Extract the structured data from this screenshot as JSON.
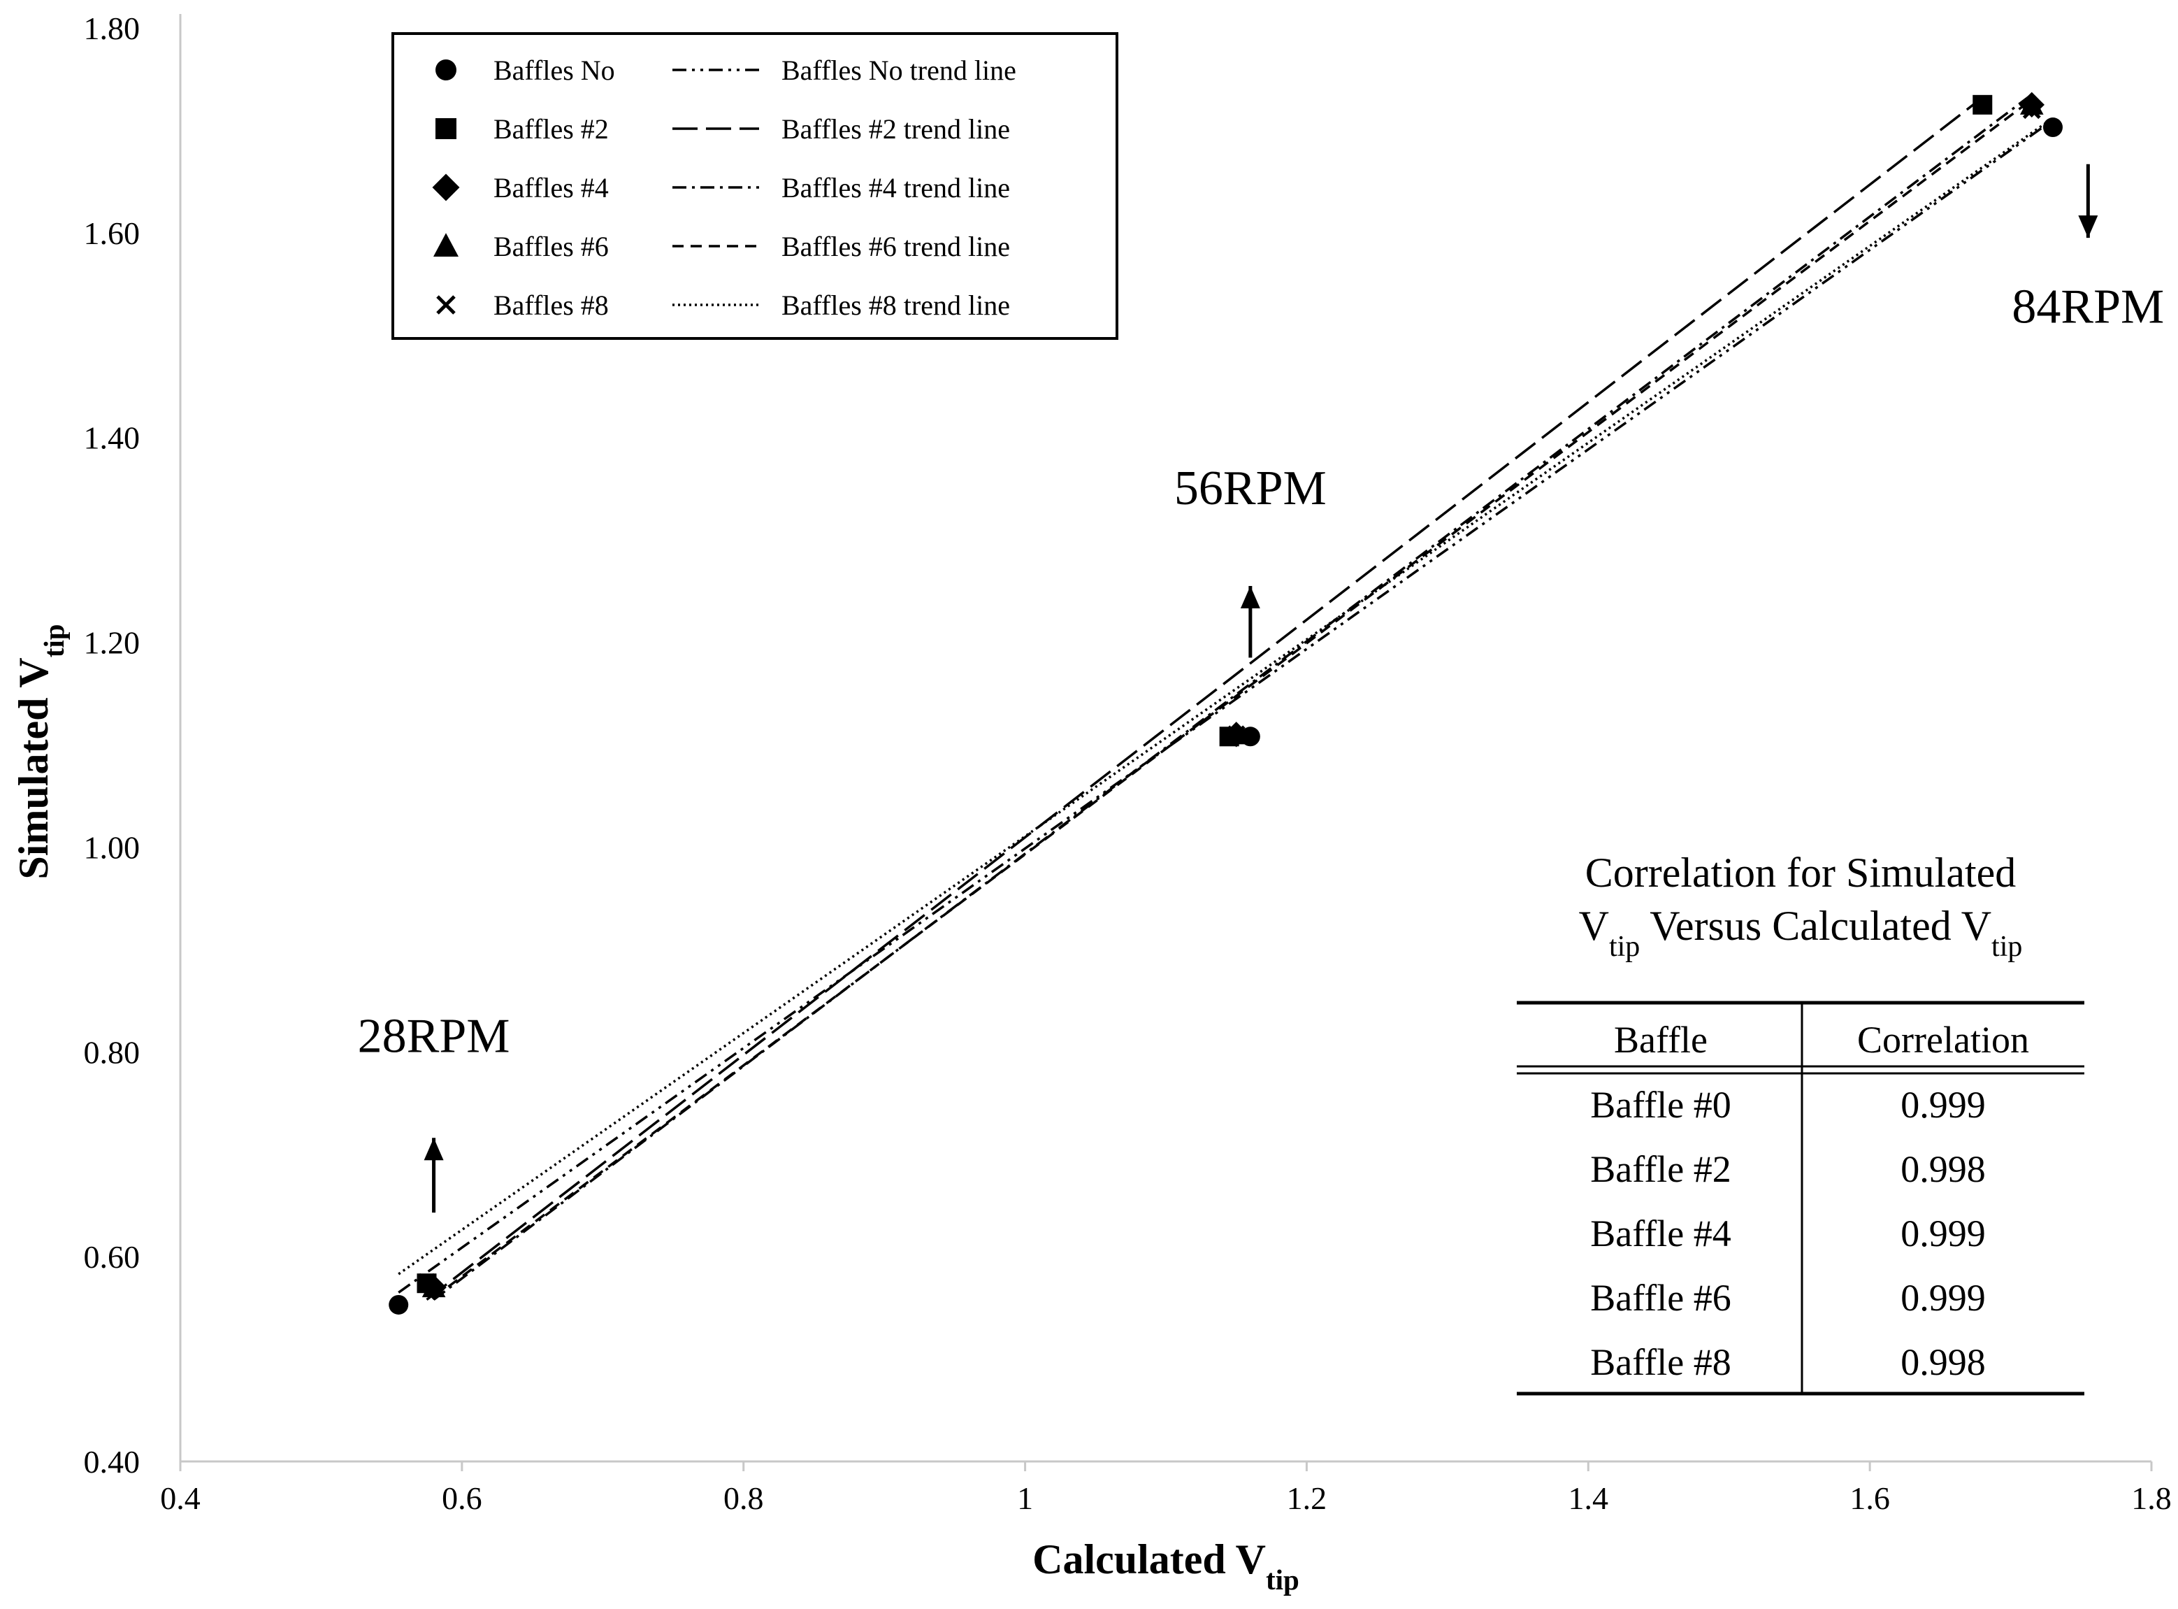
{
  "chart_data": {
    "type": "scatter",
    "xlabel": {
      "main": "Calculated V",
      "sub": "tip"
    },
    "ylabel": {
      "main": "Simulated V",
      "sub": "tip"
    },
    "xlim": [
      0.4,
      1.8
    ],
    "ylim": [
      0.4,
      1.8
    ],
    "x_ticks": [
      {
        "value": 0.4,
        "label": "0.4"
      },
      {
        "value": 0.6,
        "label": "0.6"
      },
      {
        "value": 0.8,
        "label": "0.8"
      },
      {
        "value": 1.0,
        "label": "1"
      },
      {
        "value": 1.2,
        "label": "1.2"
      },
      {
        "value": 1.4,
        "label": "1.4"
      },
      {
        "value": 1.6,
        "label": "1.6"
      },
      {
        "value": 1.8,
        "label": "1.8"
      }
    ],
    "y_ticks": [
      {
        "value": 0.4,
        "label": "0.40"
      },
      {
        "value": 0.6,
        "label": "0.60"
      },
      {
        "value": 0.8,
        "label": "0.80"
      },
      {
        "value": 1.0,
        "label": "1.00"
      },
      {
        "value": 1.2,
        "label": "1.20"
      },
      {
        "value": 1.4,
        "label": "1.40"
      },
      {
        "value": 1.6,
        "label": "1.60"
      },
      {
        "value": 1.8,
        "label": "1.80"
      }
    ],
    "grid": false,
    "legend_position": "top-left",
    "series": [
      {
        "name": "Baffles No",
        "marker": "circle",
        "trend_name": "Baffles No trend line",
        "trend_dash": "20 8 4 8 4 8",
        "x": [
          0.555,
          1.16,
          1.73
        ],
        "y": [
          0.553,
          1.108,
          1.703
        ],
        "trend": [
          [
            0.555,
            0.565
          ],
          [
            1.73,
            1.71
          ]
        ]
      },
      {
        "name": "Baffles #2",
        "marker": "square",
        "trend_name": "Baffles #2 trend line",
        "trend_dash": "36 12",
        "x": [
          0.575,
          1.145,
          1.68
        ],
        "y": [
          0.574,
          1.108,
          1.725
        ],
        "trend": [
          [
            0.575,
            0.558
          ],
          [
            1.68,
            1.732
          ]
        ]
      },
      {
        "name": "Baffles #4",
        "marker": "diamond",
        "trend_name": "Baffles #4 trend line",
        "trend_dash": "20 8 4 8",
        "x": [
          0.58,
          1.15,
          1.715
        ],
        "y": [
          0.57,
          1.11,
          1.725
        ],
        "trend": [
          [
            0.58,
            0.558
          ],
          [
            1.715,
            1.735
          ]
        ]
      },
      {
        "name": "Baffles #6",
        "marker": "triangle",
        "trend_name": "Baffles #6 trend line",
        "trend_dash": "16 10",
        "x": [
          0.58,
          1.15,
          1.715
        ],
        "y": [
          0.57,
          1.11,
          1.725
        ],
        "trend": [
          [
            0.58,
            0.56
          ],
          [
            1.715,
            1.73
          ]
        ]
      },
      {
        "name": "Baffles #8",
        "marker": "x",
        "trend_name": "Baffles #8 trend line",
        "trend_dash": "3 5",
        "x": [
          0.575,
          1.15,
          1.715
        ],
        "y": [
          0.575,
          1.11,
          1.72
        ],
        "trend": [
          [
            0.555,
            0.583
          ],
          [
            1.73,
            1.712
          ]
        ]
      }
    ],
    "annotations": [
      {
        "text": "28RPM",
        "x": 0.58,
        "arrow": "up",
        "arrow_y": [
          0.643,
          0.716
        ],
        "text_y": 0.8
      },
      {
        "text": "56RPM",
        "x": 1.16,
        "arrow": "up",
        "arrow_y": [
          1.185,
          1.255
        ],
        "text_y": 1.335
      },
      {
        "text": "84RPM",
        "x": 1.755,
        "arrow": "down",
        "arrow_y": [
          1.667,
          1.595
        ],
        "text_y": 1.512
      }
    ],
    "correlation_table": {
      "title_line1": "Correlation for Simulated",
      "title_line2": [
        {
          "t": "V"
        },
        {
          "t": "tip",
          "sub": true
        },
        {
          "t": " Versus Calculated V"
        },
        {
          "t": "tip",
          "sub": true
        }
      ],
      "headers": [
        "Baffle",
        "Correlation"
      ],
      "rows": [
        [
          "Baffle #0",
          "0.999"
        ],
        [
          "Baffle #2",
          "0.998"
        ],
        [
          "Baffle #4",
          "0.999"
        ],
        [
          "Baffle #6",
          "0.999"
        ],
        [
          "Baffle #8",
          "0.998"
        ]
      ]
    }
  }
}
